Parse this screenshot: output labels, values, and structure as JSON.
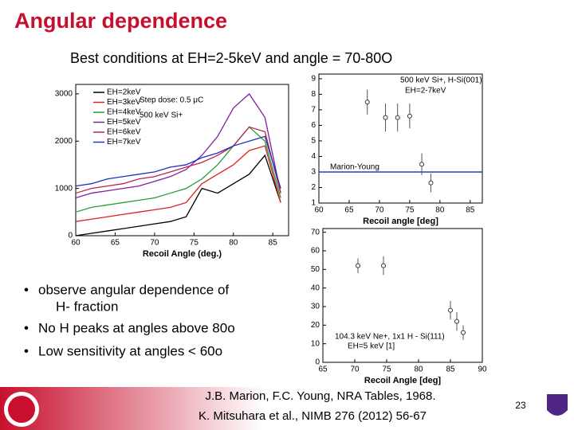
{
  "title": "Angular dependence",
  "subtitle": "Best conditions at EH=2-5keV and angle = 70-80O",
  "bullets": [
    "observe angular dependence of",
    "H- fraction",
    "No H peaks at angles above 80o",
    "Low sensitivity at angles < 60o"
  ],
  "references": [
    "J.B. Marion, F.C. Young, NRA Tables, 1968.",
    "K. Mitsuhara et al., NIMB 276 (2012) 56-67"
  ],
  "page_number": "23",
  "chart_data": [
    {
      "type": "line",
      "xlabel": "Recoil Angle (deg.)",
      "annotations": [
        "Step dose: 0.5 μC",
        "500 keV Si+"
      ],
      "x": [
        60,
        62,
        64,
        66,
        68,
        70,
        72,
        74,
        76,
        78,
        80,
        82,
        84,
        86
      ],
      "xlim": [
        60,
        87
      ],
      "xticks": [
        60,
        65,
        70,
        75,
        80,
        85
      ],
      "ylim": [
        0,
        3200
      ],
      "yticks": [
        0,
        1000,
        2000,
        3000
      ],
      "series": [
        {
          "name": "EH=2keV",
          "color": "#000000",
          "values": [
            0,
            50,
            100,
            150,
            200,
            250,
            300,
            400,
            1000,
            900,
            1100,
            1300,
            1700,
            700
          ]
        },
        {
          "name": "EH=3keV",
          "color": "#e02020",
          "values": [
            300,
            350,
            400,
            450,
            500,
            550,
            600,
            700,
            1100,
            1300,
            1500,
            1800,
            1900,
            700
          ]
        },
        {
          "name": "EH=4keV",
          "color": "#20a030",
          "values": [
            500,
            600,
            650,
            700,
            750,
            800,
            900,
            1000,
            1200,
            1500,
            1900,
            2300,
            2000,
            800
          ]
        },
        {
          "name": "EH=5keV",
          "color": "#8020a0",
          "values": [
            800,
            900,
            950,
            1000,
            1050,
            1150,
            1250,
            1400,
            1700,
            2100,
            2700,
            3000,
            2500,
            900
          ]
        },
        {
          "name": "EH=6keV",
          "color": "#c02050",
          "values": [
            900,
            1000,
            1050,
            1100,
            1200,
            1250,
            1350,
            1450,
            1550,
            1700,
            1900,
            2300,
            2200,
            900
          ]
        },
        {
          "name": "EH=7keV",
          "color": "#2030c0",
          "values": [
            1050,
            1100,
            1200,
            1250,
            1300,
            1350,
            1450,
            1500,
            1650,
            1750,
            1900,
            2000,
            2100,
            1000
          ]
        }
      ]
    },
    {
      "type": "scatter",
      "xlabel": "Recoil angle [deg]",
      "annotations": [
        "500 keV Si+, H-Si(001)",
        "EH=2-7keV",
        "Marion-Young"
      ],
      "hline": 3,
      "hline_color": "#2040c0",
      "x": [
        68,
        71,
        73,
        75,
        77,
        78.5
      ],
      "values": [
        7.5,
        6.5,
        6.5,
        6.6,
        3.5,
        2.3
      ],
      "errors": [
        0.8,
        0.9,
        0.9,
        0.8,
        0.7,
        0.6
      ],
      "xlim": [
        60,
        87
      ],
      "xticks": [
        60,
        65,
        70,
        75,
        80,
        85
      ],
      "ylim": [
        1,
        9.3
      ],
      "yticks": [
        1,
        2,
        3,
        4,
        5,
        6,
        7,
        8,
        9
      ]
    },
    {
      "type": "scatter",
      "xlabel": "Recoil Angle [deg]",
      "annotations": [
        "104.3 keV Ne+, 1x1 H - Si(111)",
        "EH=5 keV [1]"
      ],
      "x": [
        70.5,
        74.5,
        85,
        86,
        87
      ],
      "values": [
        52,
        52,
        28,
        22,
        16
      ],
      "errors": [
        4,
        5,
        5,
        5,
        4
      ],
      "xlim": [
        65,
        90
      ],
      "xticks": [
        65,
        70,
        75,
        80,
        85,
        90
      ],
      "ylim": [
        0,
        72
      ],
      "yticks": [
        0,
        10,
        20,
        30,
        40,
        50,
        60,
        70
      ]
    }
  ]
}
